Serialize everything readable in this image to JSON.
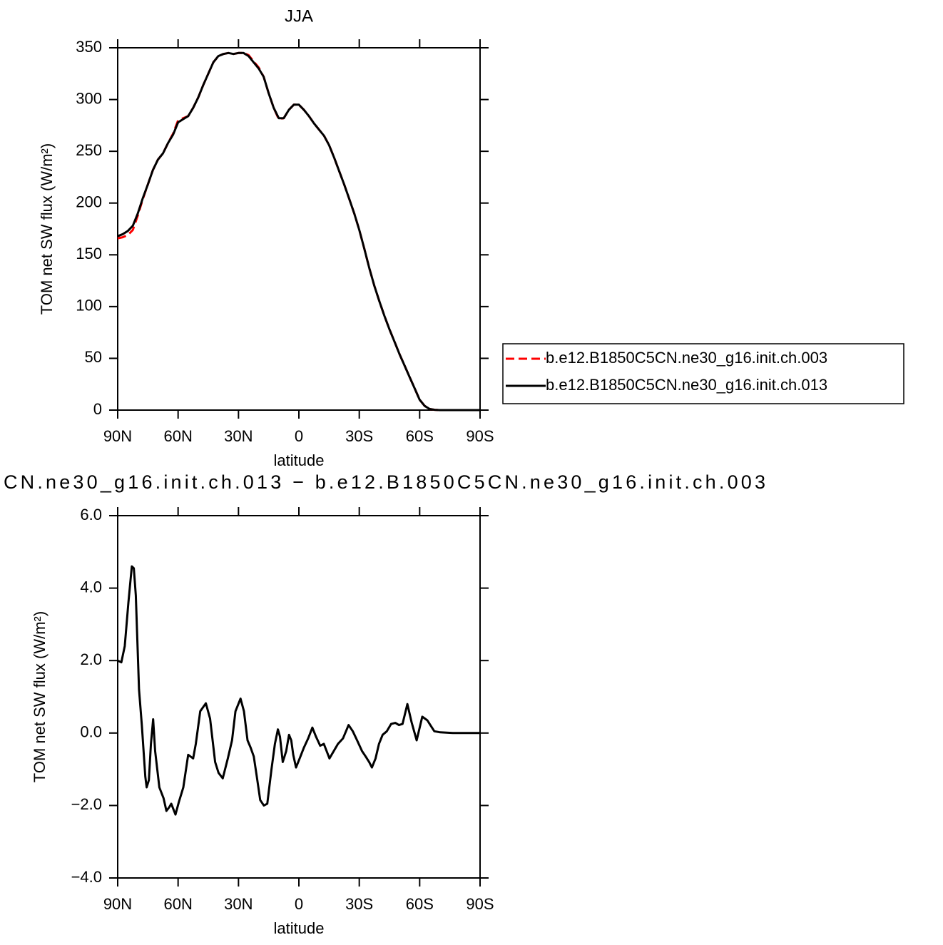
{
  "chart_data": [
    {
      "type": "line",
      "title": "JJA",
      "x_label": "latitude",
      "y_label": "TOM net SW flux (W/m²)",
      "x": [
        90,
        87.5,
        85,
        82.5,
        80,
        77.5,
        75,
        72.5,
        70,
        67.5,
        65,
        62.5,
        60,
        57.5,
        55,
        52.5,
        50,
        47.5,
        45,
        42.5,
        40,
        37.5,
        35,
        32.5,
        30,
        27.5,
        25,
        22.5,
        20,
        17.5,
        15,
        12.5,
        10,
        7.5,
        5,
        2.5,
        0,
        -2.5,
        -5,
        -7.5,
        -10,
        -12.5,
        -15,
        -17.5,
        -20,
        -22.5,
        -25,
        -27.5,
        -30,
        -32.5,
        -35,
        -37.5,
        -40,
        -42.5,
        -45,
        -47.5,
        -50,
        -52.5,
        -55,
        -57.5,
        -60,
        -62.5,
        -65,
        -67.5,
        -70,
        -75,
        -80,
        -85,
        -90
      ],
      "xlim": [
        90,
        -90
      ],
      "xticks": [
        {
          "value": 90,
          "label": "90N"
        },
        {
          "value": 60,
          "label": "60N"
        },
        {
          "value": 30,
          "label": "30N"
        },
        0,
        {
          "value": -30,
          "label": "30S"
        },
        {
          "value": -60,
          "label": "60S"
        },
        {
          "value": -90,
          "label": "90S"
        }
      ],
      "ylim": [
        0,
        350
      ],
      "yticks": [
        0,
        50,
        100,
        150,
        200,
        250,
        300,
        350
      ],
      "legend": "right",
      "series": [
        {
          "name": "b.e12.B1850C5CN.ne30_g16.init.ch.003",
          "color": "#ff0000",
          "dash": "dashed",
          "values": [
            166,
            167,
            169,
            174,
            188,
            204,
            218,
            232,
            242,
            248,
            258,
            267,
            280,
            282,
            284,
            292,
            302,
            314,
            325,
            336,
            342,
            344,
            345,
            344,
            345,
            345,
            343,
            337,
            331,
            322,
            306,
            292,
            281,
            282,
            290,
            295,
            295,
            290,
            284,
            277,
            271,
            265,
            256,
            244,
            231,
            218,
            204,
            190,
            174,
            156,
            137,
            120,
            105,
            91,
            78,
            66,
            54,
            43,
            32,
            21,
            10,
            4,
            1,
            0.3,
            0,
            0,
            0,
            0,
            0
          ]
        },
        {
          "name": "b.e12.B1850C5CN.ne30_g16.init.ch.013",
          "color": "#000000",
          "dash": "solid",
          "values": [
            168,
            170,
            173,
            178,
            190,
            205,
            218,
            232,
            242,
            248,
            258,
            266,
            278,
            281,
            284,
            292,
            302,
            314,
            325,
            336,
            342,
            344,
            345,
            344,
            345,
            345,
            342,
            336,
            330,
            322,
            306,
            292,
            282,
            282,
            290,
            295,
            295,
            290,
            284,
            277,
            271,
            265,
            256,
            244,
            231,
            218,
            204,
            190,
            174,
            156,
            137,
            120,
            105,
            91,
            78,
            66,
            54,
            43,
            32,
            21,
            10,
            4,
            1,
            0.3,
            0,
            0,
            0,
            0,
            0
          ]
        }
      ]
    },
    {
      "type": "line",
      "title": "CN.ne30_g16.init.ch.013 − b.e12.B1850C5CN.ne30_g16.init.ch.003",
      "x_label": "latitude",
      "y_label": "TOM net SW flux (W/m²)",
      "x": [
        90,
        88.2,
        86.5,
        84.7,
        83,
        82,
        81,
        79.4,
        78,
        76.3,
        75.6,
        74.5,
        73.5,
        72.4,
        71.4,
        69.3,
        67.2,
        65.8,
        64.4,
        63.4,
        61.3,
        59.6,
        57.4,
        55,
        52.5,
        51.2,
        49,
        46.2,
        44.1,
        41.6,
        39.9,
        37.8,
        35.3,
        33.2,
        31.5,
        29,
        27.3,
        25.5,
        24,
        22.4,
        20.9,
        19.2,
        17.4,
        15.7,
        13.6,
        11.9,
        10.4,
        9.4,
        8,
        6.3,
        4.9,
        3.8,
        2.8,
        1.4,
        -0.4,
        -2.5,
        -4.6,
        -6.7,
        -8.5,
        -10.6,
        -12.4,
        -15.2,
        -17.3,
        -19.4,
        -21.9,
        -24.7,
        -26.8,
        -28.9,
        -31.4,
        -33.2,
        -34.9,
        -36.3,
        -38.1,
        -39.8,
        -41.6,
        -43.7,
        -45.8,
        -47.9,
        -49.7,
        -51.5,
        -53.9,
        -56,
        -58.5,
        -61.3,
        -63.8,
        -65.5,
        -67.3,
        -70.2,
        -76.5,
        -90
      ],
      "values": [
        2.0,
        1.95,
        2.4,
        3.6,
        4.6,
        4.55,
        3.8,
        1.2,
        0.2,
        -1.2,
        -1.5,
        -1.3,
        -0.3,
        0.38,
        -0.5,
        -1.5,
        -1.8,
        -2.15,
        -2.05,
        -1.95,
        -2.25,
        -1.9,
        -1.5,
        -0.6,
        -0.7,
        -0.3,
        0.6,
        0.82,
        0.4,
        -0.8,
        -1.1,
        -1.25,
        -0.7,
        -0.2,
        0.6,
        0.95,
        0.6,
        -0.2,
        -0.4,
        -0.65,
        -1.2,
        -1.85,
        -2.0,
        -1.95,
        -1.0,
        -0.3,
        0.1,
        -0.1,
        -0.8,
        -0.5,
        -0.05,
        -0.2,
        -0.6,
        -0.95,
        -0.7,
        -0.4,
        -0.15,
        0.15,
        -0.1,
        -0.35,
        -0.3,
        -0.7,
        -0.5,
        -0.3,
        -0.15,
        0.22,
        0.05,
        -0.2,
        -0.5,
        -0.65,
        -0.8,
        -0.95,
        -0.7,
        -0.3,
        -0.05,
        0.05,
        0.25,
        0.28,
        0.22,
        0.25,
        0.8,
        0.3,
        -0.2,
        0.45,
        0.35,
        0.2,
        0.05,
        0.02,
        0,
        0
      ],
      "color": "#000000",
      "xlim": [
        90,
        -90
      ],
      "xticks": [
        {
          "value": 90,
          "label": "90N"
        },
        {
          "value": 60,
          "label": "60N"
        },
        {
          "value": 30,
          "label": "30N"
        },
        0,
        {
          "value": -30,
          "label": "30S"
        },
        {
          "value": -60,
          "label": "60S"
        },
        {
          "value": -90,
          "label": "90S"
        }
      ],
      "ylim": [
        -4,
        6
      ],
      "yticks": [
        {
          "value": -4,
          "label": "−4.0"
        },
        {
          "value": -2,
          "label": "−2.0"
        },
        {
          "value": 0,
          "label": "0.0"
        },
        {
          "value": 2,
          "label": "2.0"
        },
        {
          "value": 4,
          "label": "4.0"
        },
        {
          "value": 6,
          "label": "6.0"
        }
      ]
    }
  ]
}
